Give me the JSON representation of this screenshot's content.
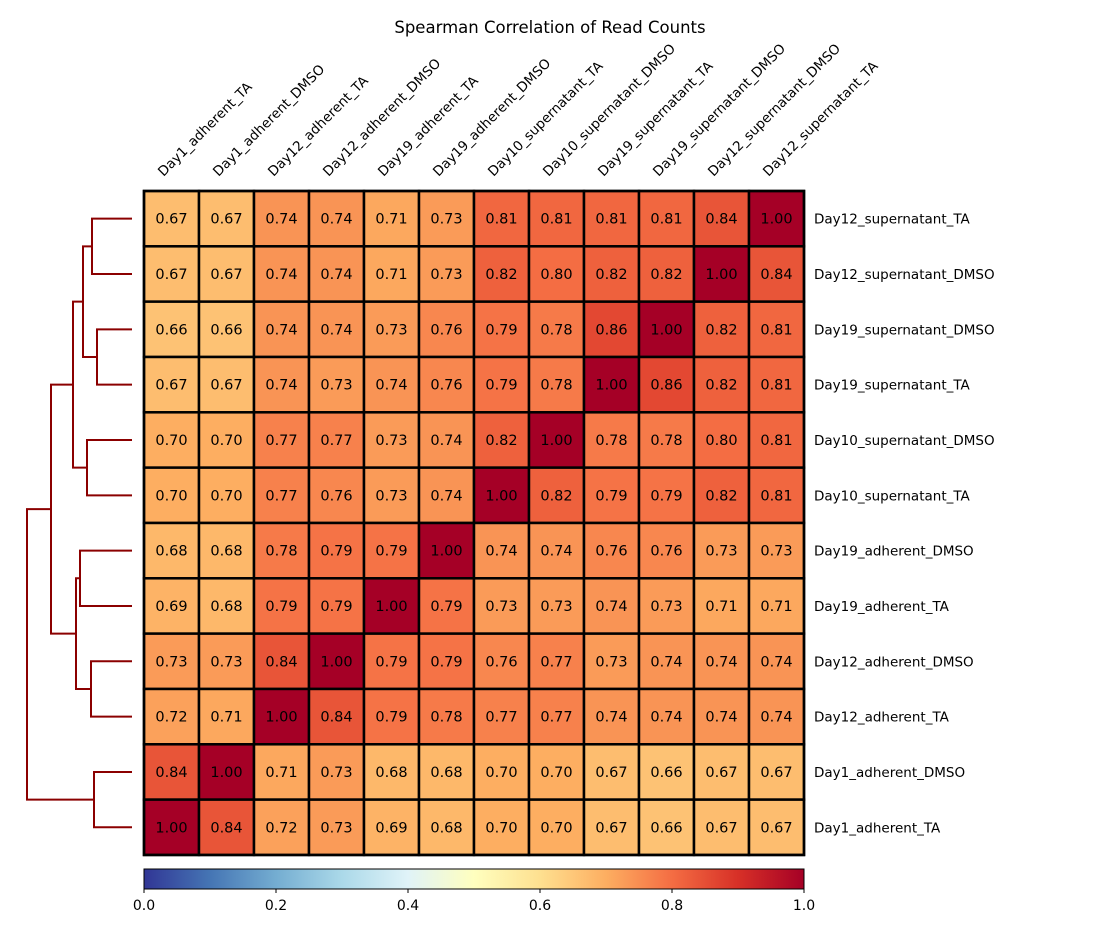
{
  "chart_data": {
    "type": "heatmap",
    "title": "Spearman Correlation of Read Counts",
    "labels": [
      "Day1_adherent_TA",
      "Day1_adherent_DMSO",
      "Day12_adherent_TA",
      "Day12_adherent_DMSO",
      "Day19_adherent_TA",
      "Day19_adherent_DMSO",
      "Day10_supernatant_TA",
      "Day10_supernatant_DMSO",
      "Day19_supernatant_TA",
      "Day19_supernatant_DMSO",
      "Day12_supernatant_DMSO",
      "Day12_supernatant_TA"
    ],
    "row_labels_top_to_bottom": [
      "Day12_supernatant_TA",
      "Day12_supernatant_DMSO",
      "Day19_supernatant_DMSO",
      "Day19_supernatant_TA",
      "Day10_supernatant_DMSO",
      "Day10_supernatant_TA",
      "Day19_adherent_DMSO",
      "Day19_adherent_TA",
      "Day12_adherent_DMSO",
      "Day12_adherent_TA",
      "Day1_adherent_DMSO",
      "Day1_adherent_TA"
    ],
    "values_top_to_bottom": [
      [
        0.67,
        0.67,
        0.74,
        0.74,
        0.71,
        0.73,
        0.81,
        0.81,
        0.81,
        0.81,
        0.84,
        1.0
      ],
      [
        0.67,
        0.67,
        0.74,
        0.74,
        0.71,
        0.73,
        0.82,
        0.8,
        0.82,
        0.82,
        1.0,
        0.84
      ],
      [
        0.66,
        0.66,
        0.74,
        0.74,
        0.73,
        0.76,
        0.79,
        0.78,
        0.86,
        1.0,
        0.82,
        0.81
      ],
      [
        0.67,
        0.67,
        0.74,
        0.73,
        0.74,
        0.76,
        0.79,
        0.78,
        1.0,
        0.86,
        0.82,
        0.81
      ],
      [
        0.7,
        0.7,
        0.77,
        0.77,
        0.73,
        0.74,
        0.82,
        1.0,
        0.78,
        0.78,
        0.8,
        0.81
      ],
      [
        0.7,
        0.7,
        0.77,
        0.76,
        0.73,
        0.74,
        1.0,
        0.82,
        0.79,
        0.79,
        0.82,
        0.81
      ],
      [
        0.68,
        0.68,
        0.78,
        0.79,
        0.79,
        1.0,
        0.74,
        0.74,
        0.76,
        0.76,
        0.73,
        0.73
      ],
      [
        0.69,
        0.68,
        0.79,
        0.79,
        1.0,
        0.79,
        0.73,
        0.73,
        0.74,
        0.73,
        0.71,
        0.71
      ],
      [
        0.73,
        0.73,
        0.84,
        1.0,
        0.79,
        0.79,
        0.76,
        0.77,
        0.73,
        0.74,
        0.74,
        0.74
      ],
      [
        0.72,
        0.71,
        1.0,
        0.84,
        0.79,
        0.78,
        0.77,
        0.77,
        0.74,
        0.74,
        0.74,
        0.74
      ],
      [
        0.84,
        1.0,
        0.71,
        0.73,
        0.68,
        0.68,
        0.7,
        0.7,
        0.67,
        0.66,
        0.67,
        0.67
      ],
      [
        1.0,
        0.84,
        0.72,
        0.73,
        0.69,
        0.68,
        0.7,
        0.7,
        0.67,
        0.66,
        0.67,
        0.67
      ]
    ],
    "value_format": "2 decimals",
    "colormap": "RdYlBu_r",
    "colormap_stops": [
      "#313695",
      "#4575b4",
      "#74add1",
      "#abd9e9",
      "#e0f3f8",
      "#ffffbf",
      "#fee090",
      "#fdae61",
      "#f46d43",
      "#d73027",
      "#a50026"
    ],
    "vmin": 0.0,
    "vmax": 1.0,
    "colorbar": {
      "orientation": "horizontal",
      "placement": "bottom",
      "ticks": [
        0.0,
        0.2,
        0.4,
        0.6,
        0.8,
        1.0
      ],
      "tick_labels": [
        "0.0",
        "0.2",
        "0.4",
        "0.6",
        "0.8",
        "1.0"
      ]
    },
    "row_dendrogram": {
      "placement": "left",
      "color": "#8b0000",
      "merges_description": [
        [
          "Day12_supernatant_TA",
          "Day12_supernatant_DMSO"
        ],
        [
          "Day19_supernatant_DMSO",
          "Day19_supernatant_TA"
        ],
        [
          "Day10_supernatant_DMSO",
          "Day10_supernatant_TA"
        ],
        [
          "Day19_adherent_DMSO",
          "Day19_adherent_TA"
        ],
        [
          "Day12_adherent_DMSO",
          "Day12_adherent_TA"
        ],
        [
          "Day1_adherent_DMSO",
          "Day1_adherent_TA"
        ]
      ]
    },
    "xlabel": "",
    "ylabel": "",
    "x_tick_rotation": "45 degrees",
    "x_labels_placement": "top",
    "y_labels_placement": "right",
    "grid": false
  }
}
